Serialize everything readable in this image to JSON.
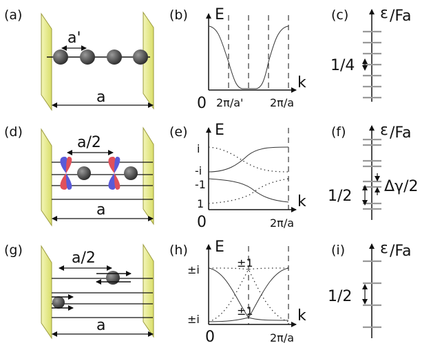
{
  "panels": {
    "a": {
      "label": "(a)",
      "spacing_label": "a'",
      "length_label": "a"
    },
    "b": {
      "label": "(b)",
      "ylabel": "E",
      "xlabel": "k",
      "origin": "0",
      "tick1": "2π/a'",
      "tick2": "2π/a"
    },
    "c": {
      "label": "(c)",
      "ylabel_sym": "ε",
      "ylabel_rest": "/Fa",
      "gap_label": "1/4"
    },
    "d": {
      "label": "(d)",
      "spacing_label": "a/2",
      "length_label": "a"
    },
    "e": {
      "label": "(e)",
      "ylabel": "E",
      "xlabel": "k",
      "origin": "0",
      "tick": "2π/a",
      "ytick1": "i",
      "ytick2": "-i",
      "ytick3": "-1",
      "ytick4": "1"
    },
    "f": {
      "label": "(f)",
      "ylabel_sym": "ε",
      "ylabel_rest": "/Fa",
      "gap_label": "1/2",
      "split_label": "Δγ/2"
    },
    "g": {
      "label": "(g)",
      "spacing_label": "a/2",
      "length_label": "a"
    },
    "h": {
      "label": "(h)",
      "ylabel": "E",
      "xlabel": "k",
      "origin": "0",
      "tick": "2π/a",
      "ytick1": "±i",
      "ytick2": "±i",
      "cross_top": "±1",
      "cross_bot": "±1"
    },
    "i": {
      "label": "(i)",
      "ylabel_sym": "ε",
      "ylabel_rest": "/Fa",
      "gap_label": "1/2"
    }
  },
  "colors": {
    "wall": "#e8ec8a",
    "wall_edge": "#9a9a3a",
    "atom": "#3a3a3a",
    "orbital_red": "#e0505a",
    "orbital_blue": "#5a5ad8",
    "level": "#999999"
  }
}
